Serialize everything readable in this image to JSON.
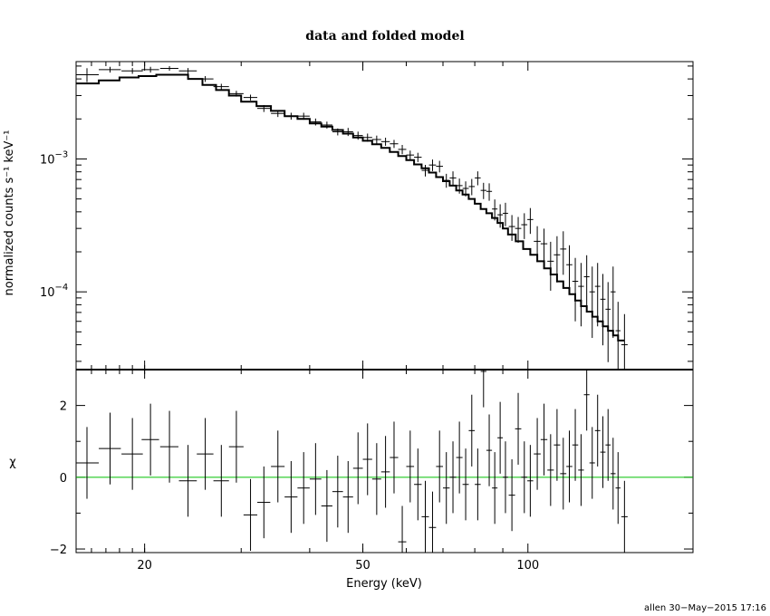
{
  "chart_data": [
    {
      "type": "scatter",
      "panel": "top",
      "title": "data and folded model",
      "xlabel": "Energy (keV)",
      "ylabel": "normalized counts s⁻¹ keV⁻¹",
      "xscale": "log",
      "yscale": "log",
      "xlim": [
        15,
        200
      ],
      "ylim": [
        2.6e-05,
        0.0054
      ],
      "y_ticks": [
        {
          "value": 0.001,
          "mantissa": "10",
          "exp": "−3"
        },
        {
          "value": 0.0001,
          "mantissa": "10",
          "exp": "−4"
        }
      ],
      "series": [
        {
          "style": "crosses",
          "x": [
            15.7,
            17.3,
            19.0,
            20.5,
            22.2,
            24.0,
            25.8,
            27.6,
            29.4,
            31.2,
            33.0,
            35.0,
            37.0,
            39.0,
            41.0,
            43.0,
            45.0,
            47.0,
            49.0,
            51.0,
            53.0,
            55.0,
            57.0,
            59.0,
            61.0,
            63.0,
            65.0,
            67.0,
            69.0,
            71.0,
            73.0,
            75.0,
            77.0,
            79.0,
            81.0,
            83.0,
            85.0,
            87.0,
            89.0,
            91.0,
            93.5,
            96.0,
            98.5,
            101.0,
            104.0,
            107.0,
            110.0,
            113.0,
            116.0,
            119.0,
            122.0,
            125.0,
            128.0,
            131.0,
            134.0,
            137.0,
            140.0,
            143.0,
            146.0,
            150.0
          ],
          "y": [
            0.0043,
            0.0047,
            0.0046,
            0.0047,
            0.0048,
            0.0046,
            0.004,
            0.0035,
            0.0031,
            0.0029,
            0.0024,
            0.0022,
            0.0021,
            0.0021,
            0.0019,
            0.0018,
            0.0016,
            0.0016,
            0.0015,
            0.00145,
            0.0014,
            0.00135,
            0.0013,
            0.00118,
            0.00107,
            0.00103,
            0.00082,
            0.0009,
            0.00088,
            0.00069,
            0.00072,
            0.00063,
            0.0006,
            0.00062,
            0.00072,
            0.00058,
            0.00057,
            0.00042,
            0.00038,
            0.00039,
            0.00031,
            0.0003,
            0.00032,
            0.00035,
            0.00024,
            0.00023,
            0.00017,
            0.00019,
            0.00021,
            0.00016,
            0.00012,
            0.00011,
            0.00013,
            0.0001,
            0.00011,
            8.8e-05,
            7.4e-05,
            0.0001,
            5.1e-05,
            4e-05
          ],
          "xerr": [
            0.8,
            0.8,
            0.85,
            0.75,
            0.85,
            0.9,
            0.9,
            0.9,
            0.9,
            0.9,
            0.9,
            1.0,
            1.0,
            1.0,
            1.0,
            1.0,
            1.0,
            1.0,
            1.0,
            1.0,
            1.0,
            1.0,
            1.0,
            1.0,
            1.0,
            1.0,
            1.0,
            1.0,
            1.0,
            1.0,
            1.0,
            1.0,
            1.0,
            1.0,
            1.0,
            1.0,
            1.0,
            1.0,
            1.0,
            1.0,
            1.25,
            1.25,
            1.25,
            1.25,
            1.5,
            1.5,
            1.5,
            1.5,
            1.5,
            1.5,
            1.5,
            1.5,
            1.5,
            1.5,
            1.5,
            1.5,
            1.5,
            1.5,
            1.5,
            2.0
          ],
          "yerr_frac": [
            0.12,
            0.05,
            0.05,
            0.05,
            0.04,
            0.05,
            0.05,
            0.05,
            0.05,
            0.05,
            0.06,
            0.06,
            0.06,
            0.06,
            0.06,
            0.06,
            0.06,
            0.07,
            0.07,
            0.07,
            0.07,
            0.07,
            0.07,
            0.08,
            0.08,
            0.08,
            0.1,
            0.1,
            0.1,
            0.12,
            0.12,
            0.13,
            0.13,
            0.14,
            0.12,
            0.14,
            0.15,
            0.18,
            0.2,
            0.2,
            0.22,
            0.22,
            0.22,
            0.22,
            0.3,
            0.3,
            0.4,
            0.38,
            0.36,
            0.4,
            0.5,
            0.5,
            0.45,
            0.55,
            0.5,
            0.55,
            0.6,
            0.55,
            0.65,
            0.7
          ]
        },
        {
          "style": "model-steps",
          "x": [
            15,
            16.5,
            18,
            19.5,
            21,
            22.5,
            24,
            25.5,
            27,
            28.5,
            30,
            32,
            34,
            36,
            38,
            40,
            42,
            44,
            46,
            48,
            50,
            52,
            54,
            56,
            58,
            60,
            62,
            64,
            66,
            68,
            70,
            72,
            74,
            76,
            78,
            80,
            82,
            84,
            86,
            88,
            90,
            92,
            95,
            98,
            101,
            104,
            107,
            110,
            113,
            116,
            119,
            122,
            125,
            128,
            131,
            134,
            137,
            140,
            143,
            146,
            150
          ],
          "y": [
            0.0037,
            0.0039,
            0.0041,
            0.0042,
            0.0043,
            0.0043,
            0.004,
            0.0036,
            0.0033,
            0.003,
            0.0027,
            0.0025,
            0.0023,
            0.0021,
            0.002,
            0.00185,
            0.00175,
            0.00165,
            0.00155,
            0.00145,
            0.00137,
            0.00129,
            0.00121,
            0.00113,
            0.00105,
            0.00098,
            0.00091,
            0.00085,
            0.00079,
            0.00073,
            0.00068,
            0.00063,
            0.00058,
            0.00054,
            0.0005,
            0.00046,
            0.00042,
            0.00039,
            0.00036,
            0.00033,
            0.0003,
            0.00027,
            0.00024,
            0.00021,
            0.00019,
            0.00017,
            0.00015,
            0.000135,
            0.00012,
            0.000107,
            9.6e-05,
            8.6e-05,
            7.8e-05,
            7.1e-05,
            6.5e-05,
            6e-05,
            5.5e-05,
            5.1e-05,
            4.7e-05,
            4.3e-05,
            4e-05
          ]
        }
      ]
    },
    {
      "type": "scatter",
      "panel": "bottom",
      "xlabel": "Energy (keV)",
      "ylabel": "χ",
      "xscale": "log",
      "xlim": [
        15,
        200
      ],
      "ylim": [
        -2.1,
        3.0
      ],
      "x_ticks": [
        "20",
        "50",
        "100"
      ],
      "y_ticks": [
        "2",
        "0",
        "−2"
      ],
      "zero_line_color": "#00c000",
      "series": [
        {
          "style": "crosses",
          "x": [
            15.7,
            17.3,
            19.0,
            20.5,
            22.2,
            24.0,
            25.8,
            27.6,
            29.4,
            31.2,
            33.0,
            35.0,
            37.0,
            39.0,
            41.0,
            43.0,
            45.0,
            47.0,
            49.0,
            51.0,
            53.0,
            55.0,
            57.0,
            59.0,
            61.0,
            63.0,
            65.0,
            67.0,
            69.0,
            71.0,
            73.0,
            75.0,
            77.0,
            79.0,
            81.0,
            83.0,
            85.0,
            87.0,
            89.0,
            91.0,
            93.5,
            96.0,
            98.5,
            101.0,
            104.0,
            107.0,
            110.0,
            113.0,
            116.0,
            119.0,
            122.0,
            125.0,
            128.0,
            131.0,
            134.0,
            137.0,
            140.0,
            143.0,
            146.0,
            150.0
          ],
          "y": [
            0.4,
            0.8,
            0.65,
            1.05,
            0.85,
            -0.1,
            0.65,
            -0.1,
            0.85,
            -1.05,
            -0.7,
            0.3,
            -0.55,
            -0.3,
            -0.05,
            -0.8,
            -0.4,
            -0.55,
            0.25,
            0.5,
            -0.05,
            0.15,
            0.55,
            -1.8,
            0.3,
            -0.2,
            -1.1,
            -1.4,
            0.3,
            -0.3,
            0.0,
            0.55,
            -0.2,
            1.3,
            -0.2,
            2.95,
            0.75,
            -0.3,
            1.1,
            0.0,
            -0.5,
            1.35,
            0.0,
            -0.1,
            0.65,
            1.05,
            0.2,
            0.9,
            0.1,
            0.3,
            0.9,
            0.2,
            2.3,
            0.4,
            1.3,
            0.7,
            0.9,
            0.1,
            -0.3,
            -1.1
          ],
          "yerr": [
            1.0,
            1.0,
            1.0,
            1.0,
            1.0,
            1.0,
            1.0,
            1.0,
            1.0,
            1.0,
            1.0,
            1.0,
            1.0,
            1.0,
            1.0,
            1.0,
            1.0,
            1.0,
            1.0,
            1.0,
            1.0,
            1.0,
            1.0,
            1.0,
            1.0,
            1.0,
            1.0,
            1.0,
            1.0,
            1.0,
            1.0,
            1.0,
            1.0,
            1.0,
            1.0,
            1.0,
            1.0,
            1.0,
            1.0,
            1.0,
            1.0,
            1.0,
            1.0,
            1.0,
            1.0,
            1.0,
            1.0,
            1.0,
            1.0,
            1.0,
            1.0,
            1.0,
            1.0,
            1.0,
            1.0,
            1.0,
            1.0,
            1.0,
            1.0,
            1.0
          ]
        }
      ]
    }
  ],
  "footer": "allen 30−May−2015 17:16"
}
